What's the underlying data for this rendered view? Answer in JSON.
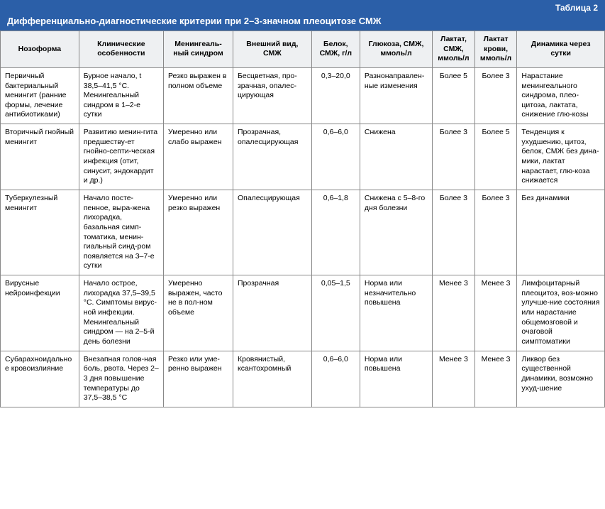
{
  "label": "Таблица 2",
  "title": "Дифференциально-диагностические критерии при 2–3-значном плеоцитозе СМЖ",
  "columns": [
    "Нозоформа",
    "Клинические особенности",
    "Менингеаль-ный синдром",
    "Внешний вид, СМЖ",
    "Белок, СМЖ, г/л",
    "Глюкоза, СМЖ, ммоль/л",
    "Лактат, СМЖ, ммоль/л",
    "Лактат крови, ммоль/л",
    "Динамика через сутки"
  ],
  "rows": [
    {
      "c0": "Первичный бактериальный менингит (ранние формы, лечение антибиотиками)",
      "c1": "Бурное начало, t 38,5–41,5 °С. Менингеальный синдром в 1–2-е сутки",
      "c2": "Резко выражен в полном объеме",
      "c3": "Бесцветная, про-зрачная, опалес-цирующая",
      "c4": "0,3–20,0",
      "c5": "Разнонаправлен-ные изменения",
      "c6": "Более 5",
      "c7": "Более 3",
      "c8": "Нарастание менингеального синдрома, плео-цитоза, лактата, снижение глю-козы"
    },
    {
      "c0": "Вторичный гнойный менингит",
      "c1": "Развитию менин-гита предшеству-ет гнойно-септи-ческая инфекция (отит, синусит, эндокардит и др.)",
      "c2": "Умеренно или слабо выражен",
      "c3": "Прозрачная, опалесцирующая",
      "c4": "0,6–6,0",
      "c5": "Снижена",
      "c6": "Более 3",
      "c7": "Более 5",
      "c8": "Тенденция к ухудшению, цитоз, белок, СМЖ без дина-мики, лактат нарастает, глю-коза снижается"
    },
    {
      "c0": "Туберкулезный менингит",
      "c1": "Начало посте-пенное, выра-жена лихорадка, базальная симп-томатика, менин-гиальный синд-ром появляется на 3–7-е сутки",
      "c2": "Умеренно или резко выражен",
      "c3": "Опалесцирующая",
      "c4": "0,6–1,8",
      "c5": "Снижена с 5–8-го дня болезни",
      "c6": "Более 3",
      "c7": "Более 3",
      "c8": "Без динамики"
    },
    {
      "c0": "Вирусные нейроинфекции",
      "c1": "Начало острое, лихорадка 37,5–39,5 °С. Симптомы вирус-ной инфекции. Менингеальный синдром — на 2–5-й день болезни",
      "c2": "Умеренно выражен, часто не в пол-ном объеме",
      "c3": "Прозрачная",
      "c4": "0,05–1,5",
      "c5": "Норма или незначительно повышена",
      "c6": "Менее 3",
      "c7": "Менее 3",
      "c8": "Лимфоцитарный плеоцитоз, воз-можно улучше-ние состояния или нарастание общемозговой и очаговой симптоматики"
    },
    {
      "c0": "Субарахноидальное кровоизлияние",
      "c1": "Внезапная голов-ная боль, рвота. Через 2–3 дня повышение температуры до 37,5–38,5 °С",
      "c2": "Резко или уме-ренно выражен",
      "c3": "Кровянистый, ксантохромный",
      "c4": "0,6–6,0",
      "c5": "Норма или повышена",
      "c6": "Менее 3",
      "c7": "Менее 3",
      "c8": "Ликвор без существенной динамики, возможно ухуд-шение"
    }
  ],
  "colors": {
    "header_bg": "#2b5fa8",
    "header_text": "#ffffff",
    "th_bg": "#eef0f2",
    "border": "#888888",
    "cell_bg": "#ffffff"
  }
}
